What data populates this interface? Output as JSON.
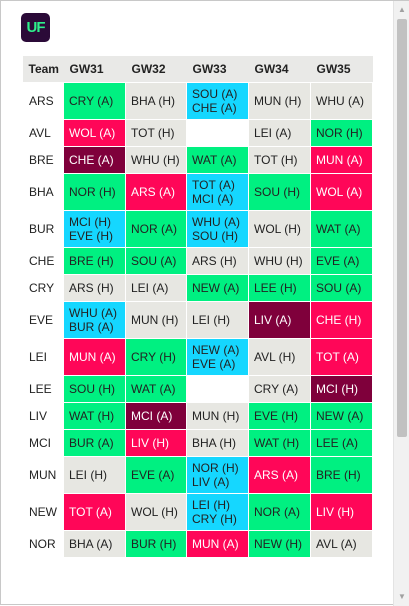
{
  "app": {
    "logo_text": "UF"
  },
  "colors": {
    "difficulty_1": "#00f081",
    "difficulty_2": "#e7e7e2",
    "difficulty_3": "#ff0658",
    "difficulty_4": "#7f003b",
    "double_gameweek": "#15d7ff",
    "blank": "#ffffff"
  },
  "table": {
    "headers": [
      "Team",
      "GW31",
      "GW32",
      "GW33",
      "GW34",
      "GW35"
    ],
    "rows": [
      {
        "team": "ARS",
        "cells": [
          {
            "fixtures": [
              "CRY (A)"
            ],
            "d": 1
          },
          {
            "fixtures": [
              "BHA (H)"
            ],
            "d": 2
          },
          {
            "fixtures": [
              "SOU (A)",
              "CHE (A)"
            ],
            "d": 5
          },
          {
            "fixtures": [
              "MUN (H)"
            ],
            "d": 2
          },
          {
            "fixtures": [
              "WHU (A)"
            ],
            "d": 2
          }
        ]
      },
      {
        "team": "AVL",
        "cells": [
          {
            "fixtures": [
              "WOL (A)"
            ],
            "d": 3
          },
          {
            "fixtures": [
              "TOT (H)"
            ],
            "d": 2
          },
          {
            "fixtures": [],
            "d": 0
          },
          {
            "fixtures": [
              "LEI (A)"
            ],
            "d": 2
          },
          {
            "fixtures": [
              "NOR (H)"
            ],
            "d": 1
          }
        ]
      },
      {
        "team": "BRE",
        "cells": [
          {
            "fixtures": [
              "CHE (A)"
            ],
            "d": 4
          },
          {
            "fixtures": [
              "WHU (H)"
            ],
            "d": 2
          },
          {
            "fixtures": [
              "WAT (A)"
            ],
            "d": 1
          },
          {
            "fixtures": [
              "TOT (H)"
            ],
            "d": 2
          },
          {
            "fixtures": [
              "MUN (A)"
            ],
            "d": 3
          }
        ]
      },
      {
        "team": "BHA",
        "cells": [
          {
            "fixtures": [
              "NOR (H)"
            ],
            "d": 1
          },
          {
            "fixtures": [
              "ARS (A)"
            ],
            "d": 3
          },
          {
            "fixtures": [
              "TOT (A)",
              "MCI (A)"
            ],
            "d": 5
          },
          {
            "fixtures": [
              "SOU (H)"
            ],
            "d": 1
          },
          {
            "fixtures": [
              "WOL (A)"
            ],
            "d": 3
          }
        ]
      },
      {
        "team": "BUR",
        "cells": [
          {
            "fixtures": [
              "MCI (H)",
              "EVE (H)"
            ],
            "d": 5
          },
          {
            "fixtures": [
              "NOR (A)"
            ],
            "d": 1
          },
          {
            "fixtures": [
              "WHU (A)",
              "SOU (H)"
            ],
            "d": 5
          },
          {
            "fixtures": [
              "WOL (H)"
            ],
            "d": 2
          },
          {
            "fixtures": [
              "WAT (A)"
            ],
            "d": 1
          }
        ]
      },
      {
        "team": "CHE",
        "cells": [
          {
            "fixtures": [
              "BRE (H)"
            ],
            "d": 1
          },
          {
            "fixtures": [
              "SOU (A)"
            ],
            "d": 1
          },
          {
            "fixtures": [
              "ARS (H)"
            ],
            "d": 2
          },
          {
            "fixtures": [
              "WHU (H)"
            ],
            "d": 2
          },
          {
            "fixtures": [
              "EVE (A)"
            ],
            "d": 1
          }
        ]
      },
      {
        "team": "CRY",
        "cells": [
          {
            "fixtures": [
              "ARS (H)"
            ],
            "d": 2
          },
          {
            "fixtures": [
              "LEI (A)"
            ],
            "d": 2
          },
          {
            "fixtures": [
              "NEW (A)"
            ],
            "d": 1
          },
          {
            "fixtures": [
              "LEE (H)"
            ],
            "d": 1
          },
          {
            "fixtures": [
              "SOU (A)"
            ],
            "d": 1
          }
        ]
      },
      {
        "team": "EVE",
        "cells": [
          {
            "fixtures": [
              "WHU (A)",
              "BUR (A)"
            ],
            "d": 5
          },
          {
            "fixtures": [
              "MUN (H)"
            ],
            "d": 2
          },
          {
            "fixtures": [
              "LEI (H)"
            ],
            "d": 2
          },
          {
            "fixtures": [
              "LIV (A)"
            ],
            "d": 4
          },
          {
            "fixtures": [
              "CHE (H)"
            ],
            "d": 3
          }
        ]
      },
      {
        "team": "LEI",
        "cells": [
          {
            "fixtures": [
              "MUN (A)"
            ],
            "d": 3
          },
          {
            "fixtures": [
              "CRY (H)"
            ],
            "d": 1
          },
          {
            "fixtures": [
              "NEW (A)",
              "EVE (A)"
            ],
            "d": 5
          },
          {
            "fixtures": [
              "AVL (H)"
            ],
            "d": 2
          },
          {
            "fixtures": [
              "TOT (A)"
            ],
            "d": 3
          }
        ]
      },
      {
        "team": "LEE",
        "cells": [
          {
            "fixtures": [
              "SOU (H)"
            ],
            "d": 1
          },
          {
            "fixtures": [
              "WAT (A)"
            ],
            "d": 1
          },
          {
            "fixtures": [],
            "d": 0
          },
          {
            "fixtures": [
              "CRY (A)"
            ],
            "d": 2
          },
          {
            "fixtures": [
              "MCI (H)"
            ],
            "d": 4
          }
        ]
      },
      {
        "team": "LIV",
        "cells": [
          {
            "fixtures": [
              "WAT (H)"
            ],
            "d": 1
          },
          {
            "fixtures": [
              "MCI (A)"
            ],
            "d": 4
          },
          {
            "fixtures": [
              "MUN (H)"
            ],
            "d": 2
          },
          {
            "fixtures": [
              "EVE (H)"
            ],
            "d": 1
          },
          {
            "fixtures": [
              "NEW (A)"
            ],
            "d": 1
          }
        ]
      },
      {
        "team": "MCI",
        "cells": [
          {
            "fixtures": [
              "BUR (A)"
            ],
            "d": 1
          },
          {
            "fixtures": [
              "LIV (H)"
            ],
            "d": 3
          },
          {
            "fixtures": [
              "BHA (H)"
            ],
            "d": 2
          },
          {
            "fixtures": [
              "WAT (H)"
            ],
            "d": 1
          },
          {
            "fixtures": [
              "LEE (A)"
            ],
            "d": 1
          }
        ]
      },
      {
        "team": "MUN",
        "cells": [
          {
            "fixtures": [
              "LEI (H)"
            ],
            "d": 2
          },
          {
            "fixtures": [
              "EVE (A)"
            ],
            "d": 1
          },
          {
            "fixtures": [
              "NOR (H)",
              "LIV (A)"
            ],
            "d": 5
          },
          {
            "fixtures": [
              "ARS (A)"
            ],
            "d": 3
          },
          {
            "fixtures": [
              "BRE (H)"
            ],
            "d": 1
          }
        ]
      },
      {
        "team": "NEW",
        "cells": [
          {
            "fixtures": [
              "TOT (A)"
            ],
            "d": 3
          },
          {
            "fixtures": [
              "WOL (H)"
            ],
            "d": 2
          },
          {
            "fixtures": [
              "LEI (H)",
              "CRY (H)"
            ],
            "d": 5
          },
          {
            "fixtures": [
              "NOR (A)"
            ],
            "d": 1
          },
          {
            "fixtures": [
              "LIV (H)"
            ],
            "d": 3
          }
        ]
      },
      {
        "team": "NOR",
        "cells": [
          {
            "fixtures": [
              "BHA (A)"
            ],
            "d": 2
          },
          {
            "fixtures": [
              "BUR (H)"
            ],
            "d": 1
          },
          {
            "fixtures": [
              "MUN (A)"
            ],
            "d": 3
          },
          {
            "fixtures": [
              "NEW (H)"
            ],
            "d": 1
          },
          {
            "fixtures": [
              "AVL (A)"
            ],
            "d": 2
          }
        ]
      }
    ]
  }
}
